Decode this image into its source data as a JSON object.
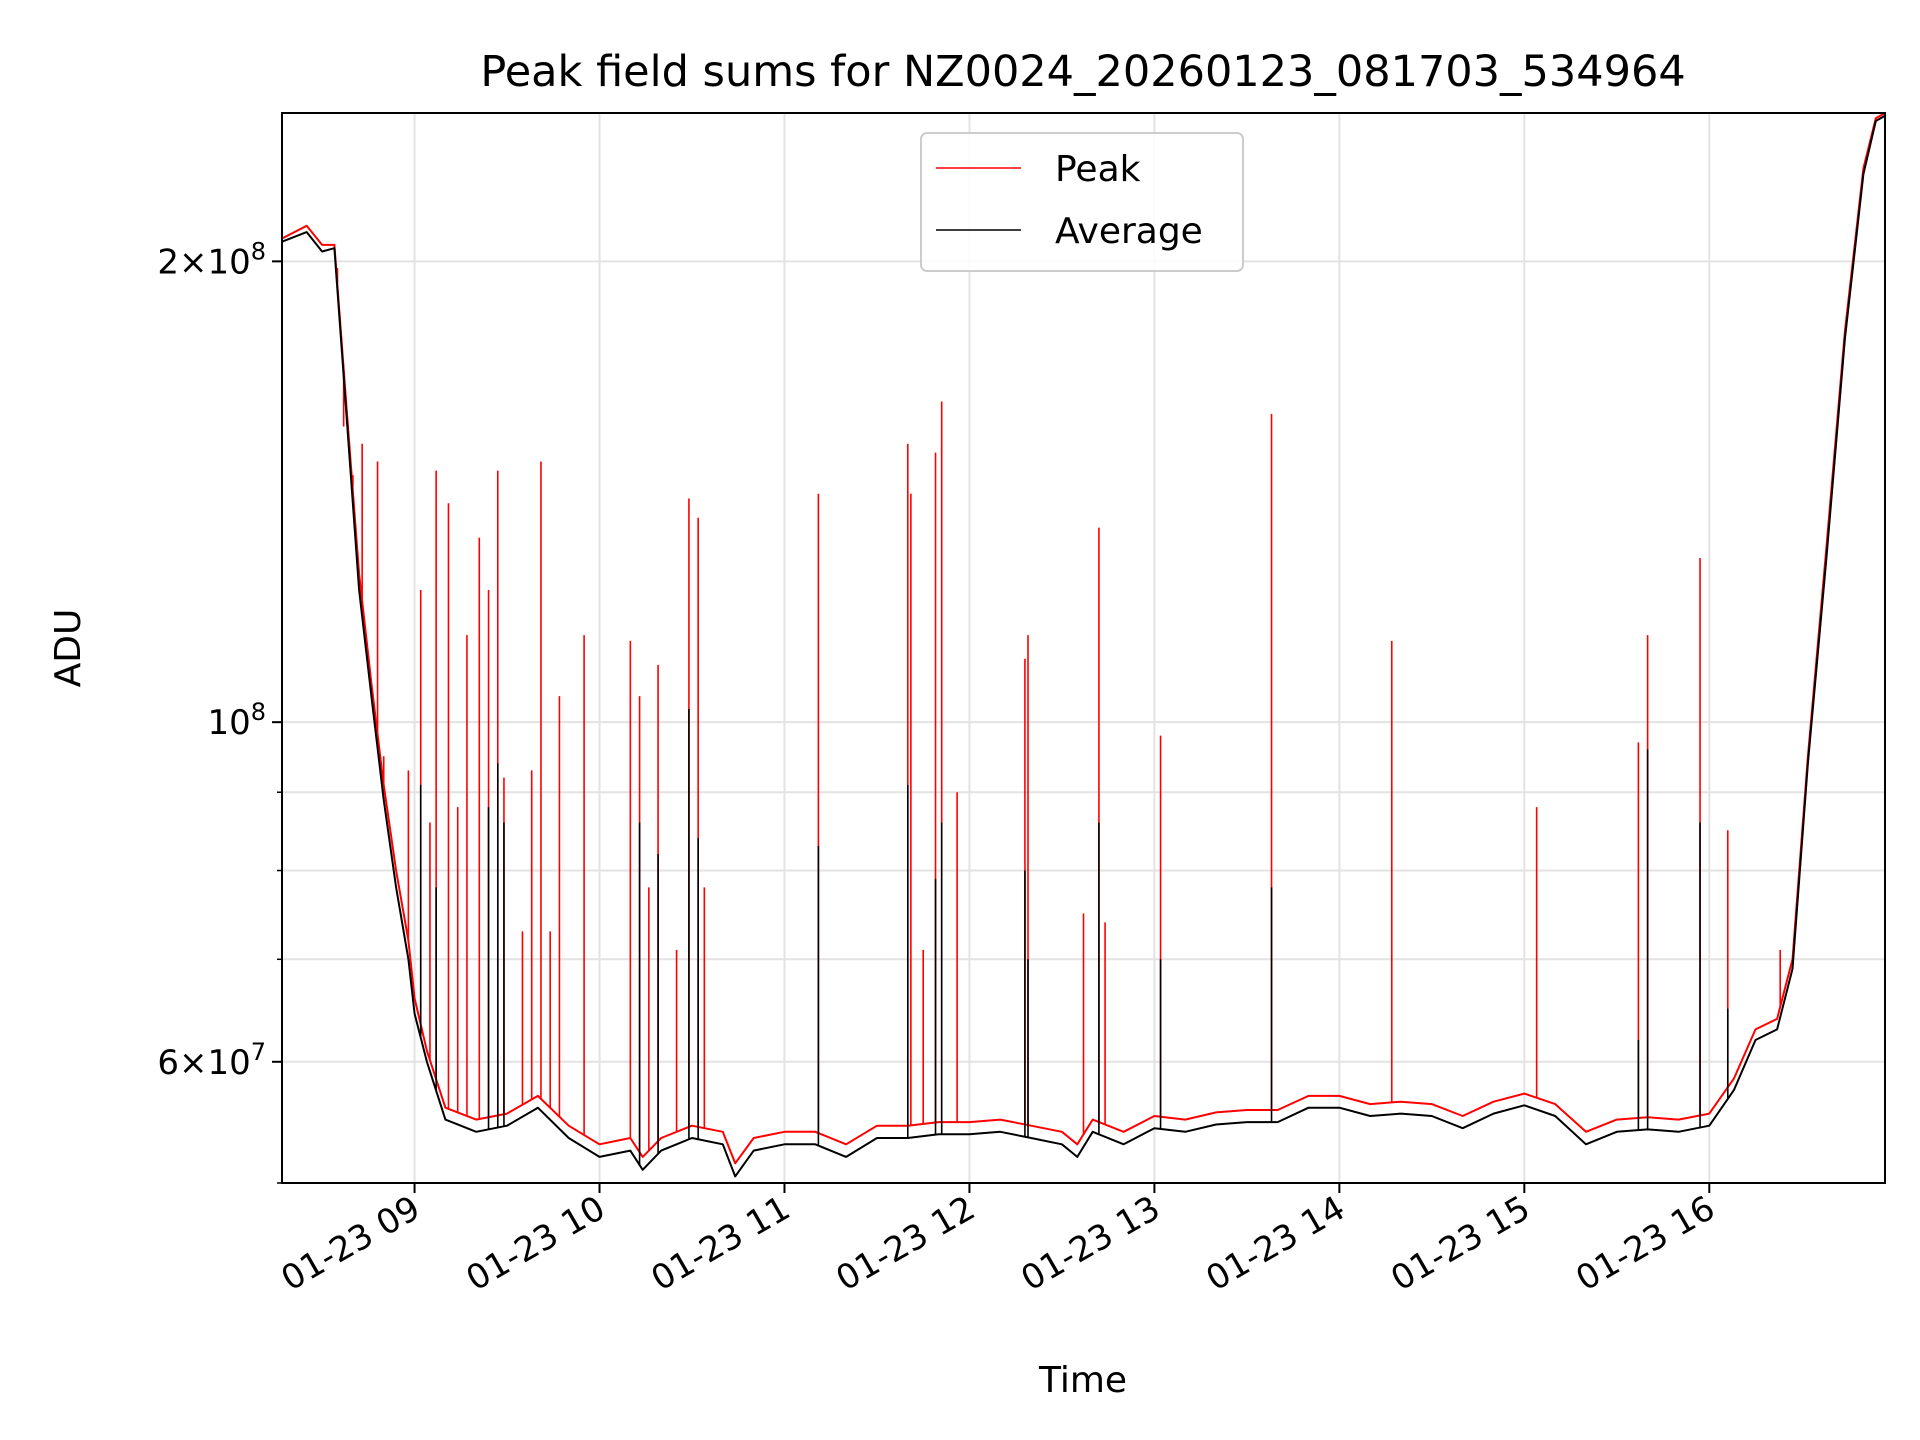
{
  "chart_data": {
    "type": "line",
    "title": "Peak field sums for NZ0024_20260123_081703_534964",
    "xlabel": "Time",
    "ylabel": "ADU",
    "y_scale": "log",
    "ylim": [
      50000000,
      250000000
    ],
    "xlim": [
      "2026-01-23 08:17",
      "2026-01-23 16:57"
    ],
    "x_tick_labels": [
      "01-23 09",
      "01-23 10",
      "01-23 11",
      "01-23 12",
      "01-23 13",
      "01-23 14",
      "01-23 15",
      "01-23 16"
    ],
    "x_ticks": [
      "2026-01-23 09:00",
      "2026-01-23 10:00",
      "2026-01-23 11:00",
      "2026-01-23 12:00",
      "2026-01-23 13:00",
      "2026-01-23 14:00",
      "2026-01-23 15:00",
      "2026-01-23 16:00"
    ],
    "y_tick_labels": [
      {
        "value": 60000000,
        "mantissa": "6",
        "exp": "7"
      },
      {
        "value": 100000000,
        "mantissa": "",
        "exp": "8"
      },
      {
        "value": 200000000,
        "mantissa": "2",
        "exp": "8"
      }
    ],
    "grid": true,
    "legend": {
      "placement": "upper center"
    },
    "series": [
      {
        "name": "Peak",
        "color": "#ff0000",
        "baseline": [
          [
            "08:17",
            207000000
          ],
          [
            "08:25",
            211000000
          ],
          [
            "08:30",
            205000000
          ],
          [
            "08:34",
            205000000
          ],
          [
            "08:38",
            160000000
          ],
          [
            "08:42",
            125000000
          ],
          [
            "08:46",
            106000000
          ],
          [
            "08:50",
            91000000
          ],
          [
            "08:54",
            80000000
          ],
          [
            "08:58",
            72000000
          ],
          [
            "09:00",
            66000000
          ],
          [
            "09:04",
            61000000
          ],
          [
            "09:10",
            56000000
          ],
          [
            "09:20",
            55000000
          ],
          [
            "09:30",
            55500000
          ],
          [
            "09:40",
            57000000
          ],
          [
            "09:50",
            54500000
          ],
          [
            "10:00",
            53000000
          ],
          [
            "10:10",
            53500000
          ],
          [
            "10:14",
            52000000
          ],
          [
            "10:20",
            53500000
          ],
          [
            "10:30",
            54500000
          ],
          [
            "10:40",
            54000000
          ],
          [
            "10:44",
            51500000
          ],
          [
            "10:50",
            53500000
          ],
          [
            "11:00",
            54000000
          ],
          [
            "11:10",
            54000000
          ],
          [
            "11:20",
            53000000
          ],
          [
            "11:30",
            54500000
          ],
          [
            "11:40",
            54500000
          ],
          [
            "11:50",
            54800000
          ],
          [
            "12:00",
            54800000
          ],
          [
            "12:10",
            55000000
          ],
          [
            "12:20",
            54500000
          ],
          [
            "12:30",
            54000000
          ],
          [
            "12:35",
            53000000
          ],
          [
            "12:40",
            55000000
          ],
          [
            "12:50",
            54000000
          ],
          [
            "13:00",
            55300000
          ],
          [
            "13:10",
            55000000
          ],
          [
            "13:20",
            55600000
          ],
          [
            "13:30",
            55800000
          ],
          [
            "13:40",
            55800000
          ],
          [
            "13:50",
            57000000
          ],
          [
            "14:00",
            57000000
          ],
          [
            "14:10",
            56300000
          ],
          [
            "14:20",
            56500000
          ],
          [
            "14:30",
            56300000
          ],
          [
            "14:40",
            55300000
          ],
          [
            "14:50",
            56500000
          ],
          [
            "15:00",
            57200000
          ],
          [
            "15:10",
            56300000
          ],
          [
            "15:20",
            54000000
          ],
          [
            "15:30",
            55000000
          ],
          [
            "15:40",
            55200000
          ],
          [
            "15:50",
            55000000
          ],
          [
            "16:00",
            55500000
          ],
          [
            "16:08",
            58500000
          ],
          [
            "16:15",
            63000000
          ],
          [
            "16:22",
            64000000
          ],
          [
            "16:27",
            70000000
          ],
          [
            "16:32",
            95000000
          ],
          [
            "16:38",
            130000000
          ],
          [
            "16:44",
            180000000
          ],
          [
            "16:50",
            230000000
          ],
          [
            "16:54",
            248000000
          ],
          [
            "16:57",
            250000000
          ]
        ],
        "spikes": [
          [
            "08:35",
            198000000
          ],
          [
            "08:37",
            156000000
          ],
          [
            "08:40",
            145000000
          ],
          [
            "08:43",
            152000000
          ],
          [
            "08:48",
            148000000
          ],
          [
            "08:50",
            95000000
          ],
          [
            "08:58",
            93000000
          ],
          [
            "09:02",
            122000000
          ],
          [
            "09:05",
            86000000
          ],
          [
            "09:07",
            146000000
          ],
          [
            "09:11",
            139000000
          ],
          [
            "09:14",
            88000000
          ],
          [
            "09:17",
            114000000
          ],
          [
            "09:21",
            132000000
          ],
          [
            "09:24",
            122000000
          ],
          [
            "09:27",
            146000000
          ],
          [
            "09:29",
            92000000
          ],
          [
            "09:35",
            73000000
          ],
          [
            "09:38",
            93000000
          ],
          [
            "09:41",
            148000000
          ],
          [
            "09:44",
            73000000
          ],
          [
            "09:47",
            104000000
          ],
          [
            "09:55",
            114000000
          ],
          [
            "10:10",
            113000000
          ],
          [
            "10:13",
            104000000
          ],
          [
            "10:16",
            78000000
          ],
          [
            "10:19",
            109000000
          ],
          [
            "10:25",
            71000000
          ],
          [
            "10:29",
            140000000
          ],
          [
            "10:32",
            136000000
          ],
          [
            "10:34",
            78000000
          ],
          [
            "11:11",
            141000000
          ],
          [
            "11:40",
            152000000
          ],
          [
            "11:41",
            141000000
          ],
          [
            "11:45",
            71000000
          ],
          [
            "11:49",
            150000000
          ],
          [
            "11:51",
            162000000
          ],
          [
            "11:56",
            90000000
          ],
          [
            "12:18",
            110000000
          ],
          [
            "12:19",
            114000000
          ],
          [
            "12:37",
            75000000
          ],
          [
            "12:42",
            134000000
          ],
          [
            "12:44",
            74000000
          ],
          [
            "13:02",
            98000000
          ],
          [
            "13:38",
            159000000
          ],
          [
            "14:17",
            113000000
          ],
          [
            "15:04",
            88000000
          ],
          [
            "15:37",
            97000000
          ],
          [
            "15:40",
            114000000
          ],
          [
            "15:57",
            128000000
          ],
          [
            "16:06",
            85000000
          ],
          [
            "16:23",
            71000000
          ]
        ]
      },
      {
        "name": "Average",
        "color": "#000000",
        "baseline": [
          [
            "08:17",
            206000000
          ],
          [
            "08:25",
            209000000
          ],
          [
            "08:30",
            203000000
          ],
          [
            "08:34",
            204000000
          ],
          [
            "08:38",
            158000000
          ],
          [
            "08:42",
            122000000
          ],
          [
            "08:46",
            104000000
          ],
          [
            "08:50",
            89000000
          ],
          [
            "08:54",
            78000000
          ],
          [
            "08:58",
            70000000
          ],
          [
            "09:00",
            64500000
          ],
          [
            "09:04",
            60000000
          ],
          [
            "09:10",
            55000000
          ],
          [
            "09:20",
            54000000
          ],
          [
            "09:30",
            54500000
          ],
          [
            "09:40",
            56000000
          ],
          [
            "09:50",
            53500000
          ],
          [
            "10:00",
            52000000
          ],
          [
            "10:10",
            52500000
          ],
          [
            "10:14",
            51000000
          ],
          [
            "10:20",
            52500000
          ],
          [
            "10:30",
            53500000
          ],
          [
            "10:40",
            53000000
          ],
          [
            "10:44",
            50500000
          ],
          [
            "10:50",
            52500000
          ],
          [
            "11:00",
            53000000
          ],
          [
            "11:10",
            53000000
          ],
          [
            "11:20",
            52000000
          ],
          [
            "11:30",
            53500000
          ],
          [
            "11:40",
            53500000
          ],
          [
            "11:50",
            53800000
          ],
          [
            "12:00",
            53800000
          ],
          [
            "12:10",
            54000000
          ],
          [
            "12:20",
            53500000
          ],
          [
            "12:30",
            53000000
          ],
          [
            "12:35",
            52000000
          ],
          [
            "12:40",
            54000000
          ],
          [
            "12:50",
            53000000
          ],
          [
            "13:00",
            54300000
          ],
          [
            "13:10",
            54000000
          ],
          [
            "13:20",
            54600000
          ],
          [
            "13:30",
            54800000
          ],
          [
            "13:40",
            54800000
          ],
          [
            "13:50",
            56000000
          ],
          [
            "14:00",
            56000000
          ],
          [
            "14:10",
            55300000
          ],
          [
            "14:20",
            55500000
          ],
          [
            "14:30",
            55300000
          ],
          [
            "14:40",
            54300000
          ],
          [
            "14:50",
            55500000
          ],
          [
            "15:00",
            56200000
          ],
          [
            "15:10",
            55300000
          ],
          [
            "15:20",
            53000000
          ],
          [
            "15:30",
            54000000
          ],
          [
            "15:40",
            54200000
          ],
          [
            "15:50",
            54000000
          ],
          [
            "16:00",
            54500000
          ],
          [
            "16:08",
            57500000
          ],
          [
            "16:15",
            62000000
          ],
          [
            "16:22",
            63000000
          ],
          [
            "16:27",
            69000000
          ],
          [
            "16:32",
            94000000
          ],
          [
            "16:38",
            128000000
          ],
          [
            "16:44",
            178000000
          ],
          [
            "16:50",
            228000000
          ],
          [
            "16:54",
            247000000
          ],
          [
            "16:57",
            249000000
          ]
        ],
        "spikes": [
          [
            "09:02",
            91000000
          ],
          [
            "09:07",
            78000000
          ],
          [
            "09:24",
            88000000
          ],
          [
            "09:27",
            94000000
          ],
          [
            "09:29",
            86000000
          ],
          [
            "10:13",
            86000000
          ],
          [
            "10:19",
            82000000
          ],
          [
            "10:29",
            102000000
          ],
          [
            "10:32",
            84000000
          ],
          [
            "11:11",
            83000000
          ],
          [
            "11:40",
            91000000
          ],
          [
            "11:49",
            79000000
          ],
          [
            "11:51",
            86000000
          ],
          [
            "12:18",
            80000000
          ],
          [
            "12:19",
            70000000
          ],
          [
            "12:42",
            86000000
          ],
          [
            "13:02",
            70000000
          ],
          [
            "13:38",
            78000000
          ],
          [
            "15:37",
            62000000
          ],
          [
            "15:40",
            96000000
          ],
          [
            "15:57",
            86000000
          ],
          [
            "16:06",
            65000000
          ]
        ]
      }
    ]
  }
}
